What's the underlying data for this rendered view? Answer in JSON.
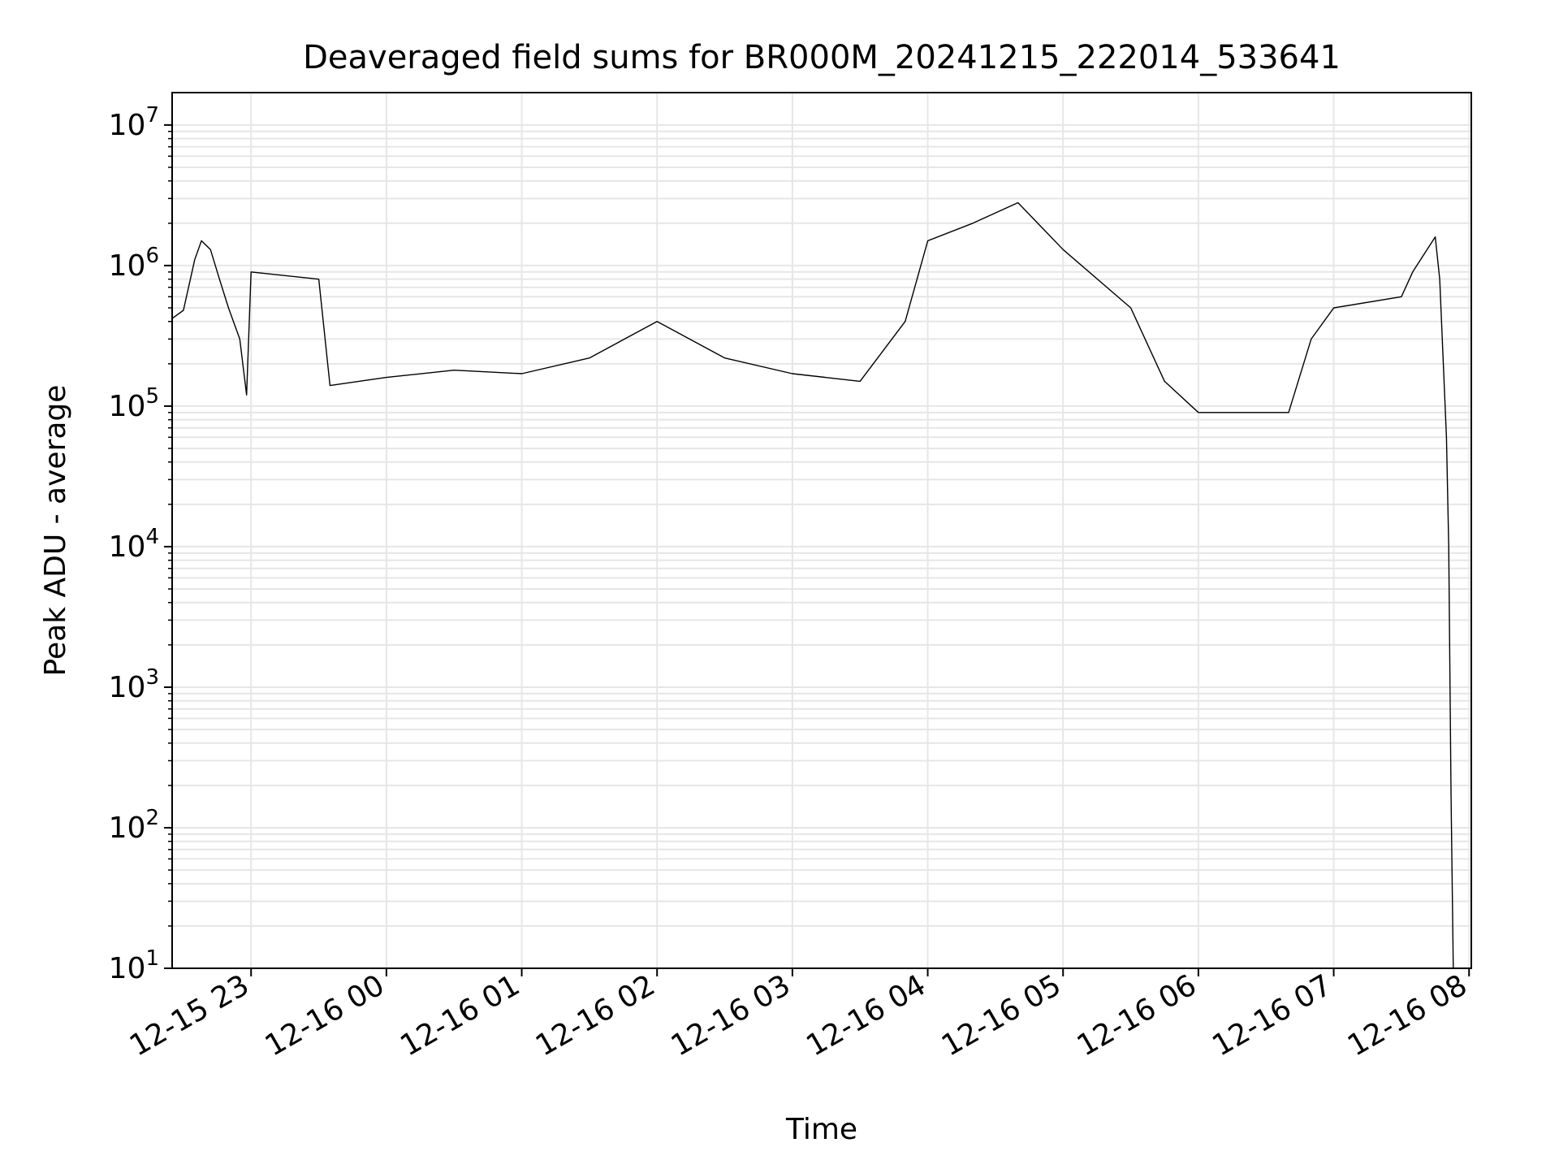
{
  "chart_data": {
    "type": "line",
    "title": "Deaveraged field sums for BR000M_20241215_222014_533641",
    "xlabel": "Time",
    "ylabel": "Peak ADU - average",
    "x_axis": {
      "type": "datetime",
      "range": [
        "2024-12-15T22:25",
        "2024-12-16T08:01"
      ],
      "ticks": [
        "2024-12-15T23:00",
        "2024-12-16T00:00",
        "2024-12-16T01:00",
        "2024-12-16T02:00",
        "2024-12-16T03:00",
        "2024-12-16T04:00",
        "2024-12-16T05:00",
        "2024-12-16T06:00",
        "2024-12-16T07:00",
        "2024-12-16T08:00"
      ],
      "tick_labels": [
        "12-15 23",
        "12-16 00",
        "12-16 01",
        "12-16 02",
        "12-16 03",
        "12-16 04",
        "12-16 05",
        "12-16 06",
        "12-16 07",
        "12-16 08"
      ],
      "tick_label_rotation": 30
    },
    "y_axis": {
      "scale": "log",
      "range": [
        10,
        17000000
      ],
      "ticks": [
        10,
        100,
        1000,
        10000,
        100000,
        1000000,
        10000000
      ],
      "tick_labels": [
        {
          "base": "10",
          "exp": "1"
        },
        {
          "base": "10",
          "exp": "2"
        },
        {
          "base": "10",
          "exp": "3"
        },
        {
          "base": "10",
          "exp": "4"
        },
        {
          "base": "10",
          "exp": "5"
        },
        {
          "base": "10",
          "exp": "6"
        },
        {
          "base": "10",
          "exp": "7"
        }
      ]
    },
    "grid": true,
    "legend": "none",
    "colors": {
      "line": "#000000",
      "grid": "#e6e6e6"
    },
    "series": [
      {
        "points": [
          [
            "2024-12-15T22:25",
            420000
          ],
          [
            "2024-12-15T22:30",
            480000
          ],
          [
            "2024-12-15T22:35",
            1100000
          ],
          [
            "2024-12-15T22:38",
            1500000
          ],
          [
            "2024-12-15T22:42",
            1300000
          ],
          [
            "2024-12-15T22:46",
            800000
          ],
          [
            "2024-12-15T22:50",
            500000
          ],
          [
            "2024-12-15T22:55",
            300000
          ],
          [
            "2024-12-15T22:58",
            120000
          ],
          [
            "2024-12-15T23:00",
            900000
          ],
          [
            "2024-12-15T23:30",
            800000
          ],
          [
            "2024-12-15T23:35",
            140000
          ],
          [
            "2024-12-16T00:00",
            160000
          ],
          [
            "2024-12-16T00:30",
            180000
          ],
          [
            "2024-12-16T01:00",
            170000
          ],
          [
            "2024-12-16T01:30",
            220000
          ],
          [
            "2024-12-16T02:00",
            400000
          ],
          [
            "2024-12-16T02:30",
            220000
          ],
          [
            "2024-12-16T03:00",
            170000
          ],
          [
            "2024-12-16T03:30",
            150000
          ],
          [
            "2024-12-16T03:50",
            400000
          ],
          [
            "2024-12-16T04:00",
            1500000
          ],
          [
            "2024-12-16T04:20",
            2000000
          ],
          [
            "2024-12-16T04:40",
            2800000
          ],
          [
            "2024-12-16T05:00",
            1300000
          ],
          [
            "2024-12-16T05:30",
            500000
          ],
          [
            "2024-12-16T05:45",
            150000
          ],
          [
            "2024-12-16T06:00",
            90000
          ],
          [
            "2024-12-16T06:40",
            90000
          ],
          [
            "2024-12-16T06:50",
            300000
          ],
          [
            "2024-12-16T07:00",
            500000
          ],
          [
            "2024-12-16T07:30",
            600000
          ],
          [
            "2024-12-16T07:35",
            900000
          ],
          [
            "2024-12-16T07:45",
            1600000
          ],
          [
            "2024-12-16T07:47",
            800000
          ],
          [
            "2024-12-16T07:50",
            60000
          ],
          [
            "2024-12-16T07:51",
            10000
          ],
          [
            "2024-12-16T07:52",
            180
          ],
          [
            "2024-12-16T07:53",
            10
          ]
        ]
      }
    ]
  }
}
